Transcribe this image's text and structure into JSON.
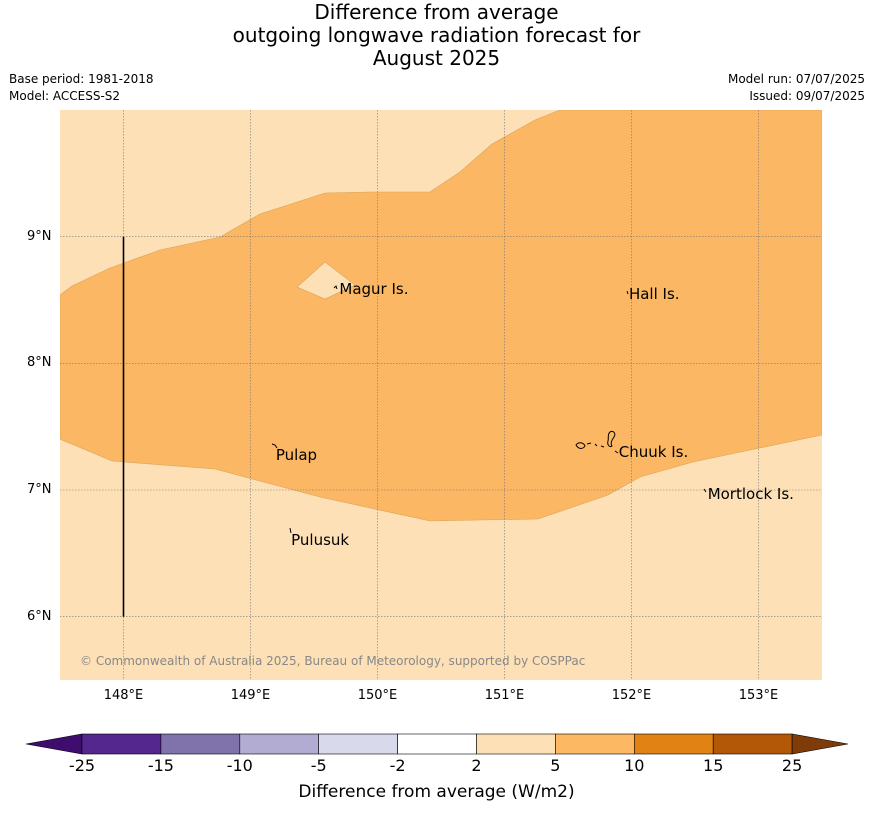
{
  "title": {
    "line1": "Difference from average",
    "line2": "outgoing longwave radiation forecast for",
    "line3": "August 2025"
  },
  "meta": {
    "base_period": "Base period: 1981-2018",
    "model": "Model: ACCESS-S2",
    "model_run": "Model run: 07/07/2025",
    "issued": "Issued: 09/07/2025"
  },
  "map": {
    "lon_range": [
      147.5,
      153.5
    ],
    "lat_range": [
      5.5,
      10.0
    ],
    "lat_labels": [
      {
        "lat": 9,
        "text": "9°N"
      },
      {
        "lat": 8,
        "text": "8°N"
      },
      {
        "lat": 7,
        "text": "7°N"
      },
      {
        "lat": 6,
        "text": "6°N"
      }
    ],
    "lon_labels": [
      {
        "lon": 148,
        "text": "148°E"
      },
      {
        "lon": 149,
        "text": "149°E"
      },
      {
        "lon": 150,
        "text": "150°E"
      },
      {
        "lon": 151,
        "text": "151°E"
      },
      {
        "lon": 152,
        "text": "152°E"
      },
      {
        "lon": 153,
        "text": "153°E"
      }
    ],
    "places": [
      {
        "name": "Magur Is.",
        "lon": 149.7,
        "lat": 8.58
      },
      {
        "name": "Hall Is.",
        "lon": 151.98,
        "lat": 8.54
      },
      {
        "name": "Pulap",
        "lon": 149.2,
        "lat": 7.27
      },
      {
        "name": "Chuuk Is.",
        "lon": 151.9,
        "lat": 7.29
      },
      {
        "name": "Mortlock Is.",
        "lon": 152.6,
        "lat": 6.96
      },
      {
        "name": "Pulusuk",
        "lon": 149.32,
        "lat": 6.6
      }
    ],
    "boundary_line": {
      "lon": 148.0,
      "lat_from": 6.0,
      "lat_to": 9.0
    },
    "copyright": "© Commonwealth of Australia 2025, Bureau of Meteorology, supported by COSPPac",
    "zones": [
      {
        "range": "2 to 5",
        "color": "#fde0b6"
      },
      {
        "range": "5 to 10",
        "color": "#fbb763"
      }
    ]
  },
  "colorbar": {
    "colors": [
      "#3f0d6e",
      "#54278f",
      "#8073ac",
      "#b2abd2",
      "#d8daeb",
      "#ffffff",
      "#fee0b6",
      "#fdb863",
      "#e08214",
      "#b35806",
      "#7f3b08"
    ],
    "labels": [
      "-25",
      "-15",
      "-10",
      "-5",
      "-2",
      "2",
      "5",
      "10",
      "15",
      "25"
    ],
    "title": "Difference from average (W/m2)"
  }
}
